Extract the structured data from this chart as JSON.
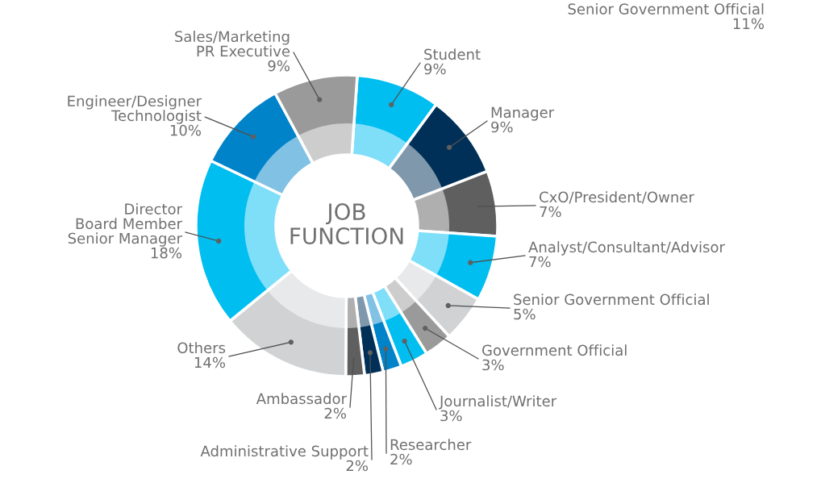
{
  "chart_data": {
    "type": "donut",
    "title": "JOB\nFUNCTION",
    "categories": [
      "Student",
      "Manager",
      "CxO/President/Owner",
      "Analyst/Consultant/Advisor",
      "Senior Government Official",
      "Government Official",
      "Journalist/Writer",
      "Researcher",
      "Administrative Support",
      "Ambassador",
      "Others",
      "Director\nBoard Member\nSenior Manager",
      "Engineer/Designer\nTechnologist",
      "Sales/Marketing\nPR Executive"
    ],
    "values": [
      9,
      9,
      7,
      7,
      5,
      3,
      3,
      2,
      2,
      2,
      14,
      18,
      10,
      9
    ],
    "value_labels": [
      "9%",
      "9%",
      "7%",
      "7%",
      "5%",
      "3%",
      "3%",
      "2%",
      "2%",
      "2%",
      "14%",
      "18%",
      "10%",
      "9%"
    ],
    "colors": [
      "#00bef0",
      "#003057",
      "#5f5f5f",
      "#00bef0",
      "#d0d2d4",
      "#9a9a9a",
      "#00bef0",
      "#0083c9",
      "#003057",
      "#5f5f5f",
      "#d0d2d4",
      "#00bef0",
      "#0083c9",
      "#9a9a9a"
    ],
    "annotations": [
      "Senior Government Official\n11%"
    ]
  }
}
